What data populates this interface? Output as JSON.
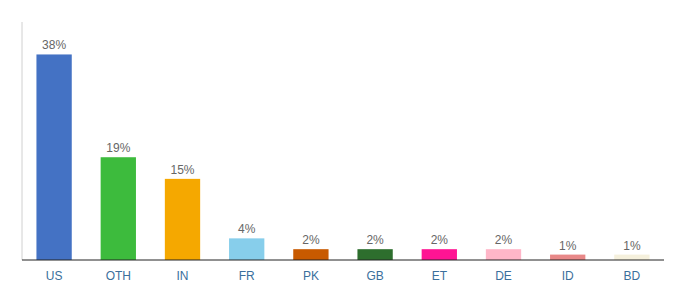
{
  "chart_data": {
    "type": "bar",
    "categories": [
      "US",
      "OTH",
      "IN",
      "FR",
      "PK",
      "GB",
      "ET",
      "DE",
      "ID",
      "BD"
    ],
    "values": [
      38,
      19,
      15,
      4,
      2,
      2,
      2,
      2,
      1,
      1
    ],
    "value_labels": [
      "38%",
      "19%",
      "15%",
      "4%",
      "2%",
      "2%",
      "2%",
      "2%",
      "1%",
      "1%"
    ],
    "colors": [
      "#4472c4",
      "#3dbb3d",
      "#f5a800",
      "#87ceeb",
      "#c85a00",
      "#2d6e2d",
      "#ff1493",
      "#ffb6c8",
      "#e88888",
      "#f5f0dc"
    ],
    "ylim": [
      0,
      44
    ],
    "data_labels": true,
    "tick_labels": "x",
    "grid": false
  }
}
